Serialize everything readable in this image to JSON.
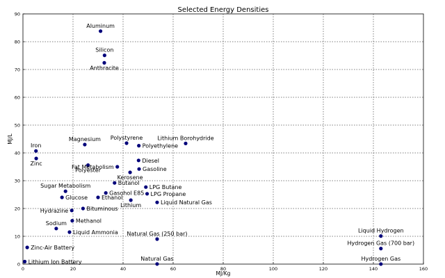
{
  "chart_data": {
    "type": "scatter",
    "title": "Selected Energy Densities",
    "xlabel": "MJ/Kg",
    "ylabel": "MJ/L",
    "xlim": [
      0,
      160
    ],
    "ylim": [
      0,
      90
    ],
    "xticks": [
      0,
      20,
      40,
      60,
      80,
      100,
      120,
      140,
      160
    ],
    "yticks": [
      0,
      10,
      20,
      30,
      40,
      50,
      60,
      70,
      80,
      90
    ],
    "grid": true,
    "marker_color": "#00007a",
    "points": [
      {
        "label": "Aluminum",
        "x": 31,
        "y": 83.8,
        "pos": "above"
      },
      {
        "label": "Silicon",
        "x": 32.6,
        "y": 75.1,
        "pos": "above"
      },
      {
        "label": "Anthracite",
        "x": 32.5,
        "y": 72.4,
        "pos": "below"
      },
      {
        "label": "Magnesium",
        "x": 24.7,
        "y": 43,
        "pos": "above"
      },
      {
        "label": "Polystyrene",
        "x": 41.4,
        "y": 43.5,
        "pos": "above"
      },
      {
        "label": "Polyethylene",
        "x": 46.3,
        "y": 42.6,
        "pos": "right"
      },
      {
        "label": "Lithium Borohydride",
        "x": 65,
        "y": 43.4,
        "pos": "above"
      },
      {
        "label": "Iron",
        "x": 5.2,
        "y": 40.7,
        "pos": "above"
      },
      {
        "label": "Zinc",
        "x": 5.3,
        "y": 38,
        "pos": "below"
      },
      {
        "label": "Polyester",
        "x": 26,
        "y": 35.6,
        "pos": "below"
      },
      {
        "label": "Fat Metabolism",
        "x": 37.7,
        "y": 35,
        "pos": "left"
      },
      {
        "label": "Diesel",
        "x": 46.2,
        "y": 37.3,
        "pos": "right"
      },
      {
        "label": "Gasoline",
        "x": 46.4,
        "y": 34.2,
        "pos": "right"
      },
      {
        "label": "Kerosene",
        "x": 42.8,
        "y": 33,
        "pos": "below"
      },
      {
        "label": "Butanol",
        "x": 36.6,
        "y": 29.2,
        "pos": "right"
      },
      {
        "label": "Sugar Metabolism",
        "x": 17,
        "y": 26.2,
        "pos": "above"
      },
      {
        "label": "LPG Butane",
        "x": 49.1,
        "y": 27.7,
        "pos": "right"
      },
      {
        "label": "Gasohol E85",
        "x": 33.1,
        "y": 25.6,
        "pos": "right"
      },
      {
        "label": "LPG Propane",
        "x": 49.6,
        "y": 25.3,
        "pos": "right"
      },
      {
        "label": "Glucose",
        "x": 15.6,
        "y": 24,
        "pos": "right"
      },
      {
        "label": "Ethanol",
        "x": 30,
        "y": 24,
        "pos": "right"
      },
      {
        "label": "Lithium",
        "x": 43.1,
        "y": 23,
        "pos": "below"
      },
      {
        "label": "Liquid Natural Gas",
        "x": 53.6,
        "y": 22.2,
        "pos": "right"
      },
      {
        "label": "Bituminous",
        "x": 24,
        "y": 20,
        "pos": "right"
      },
      {
        "label": "Hydrazine",
        "x": 19.5,
        "y": 19.3,
        "pos": "left"
      },
      {
        "label": "Methanol",
        "x": 19.7,
        "y": 15.6,
        "pos": "right"
      },
      {
        "label": "Sodium",
        "x": 13.3,
        "y": 12.8,
        "pos": "above"
      },
      {
        "label": "Liquid Ammonia",
        "x": 18.6,
        "y": 11.5,
        "pos": "right"
      },
      {
        "label": "Natural Gas (250 bar)",
        "x": 53.6,
        "y": 9,
        "pos": "above"
      },
      {
        "label": "Liquid Hydrogen",
        "x": 143,
        "y": 10.1,
        "pos": "above"
      },
      {
        "label": "Hydrogen Gas (700 bar)",
        "x": 143,
        "y": 5.6,
        "pos": "above"
      },
      {
        "label": "Zinc-Air Battery",
        "x": 1.7,
        "y": 6,
        "pos": "right"
      },
      {
        "label": "Lithium Ion Battery",
        "x": 0.72,
        "y": 0.9,
        "pos": "right"
      },
      {
        "label": "Natural Gas",
        "x": 53.6,
        "y": 0.04,
        "pos": "above"
      },
      {
        "label": "Hydrogen Gas",
        "x": 143,
        "y": 0.01,
        "pos": "above"
      }
    ]
  }
}
